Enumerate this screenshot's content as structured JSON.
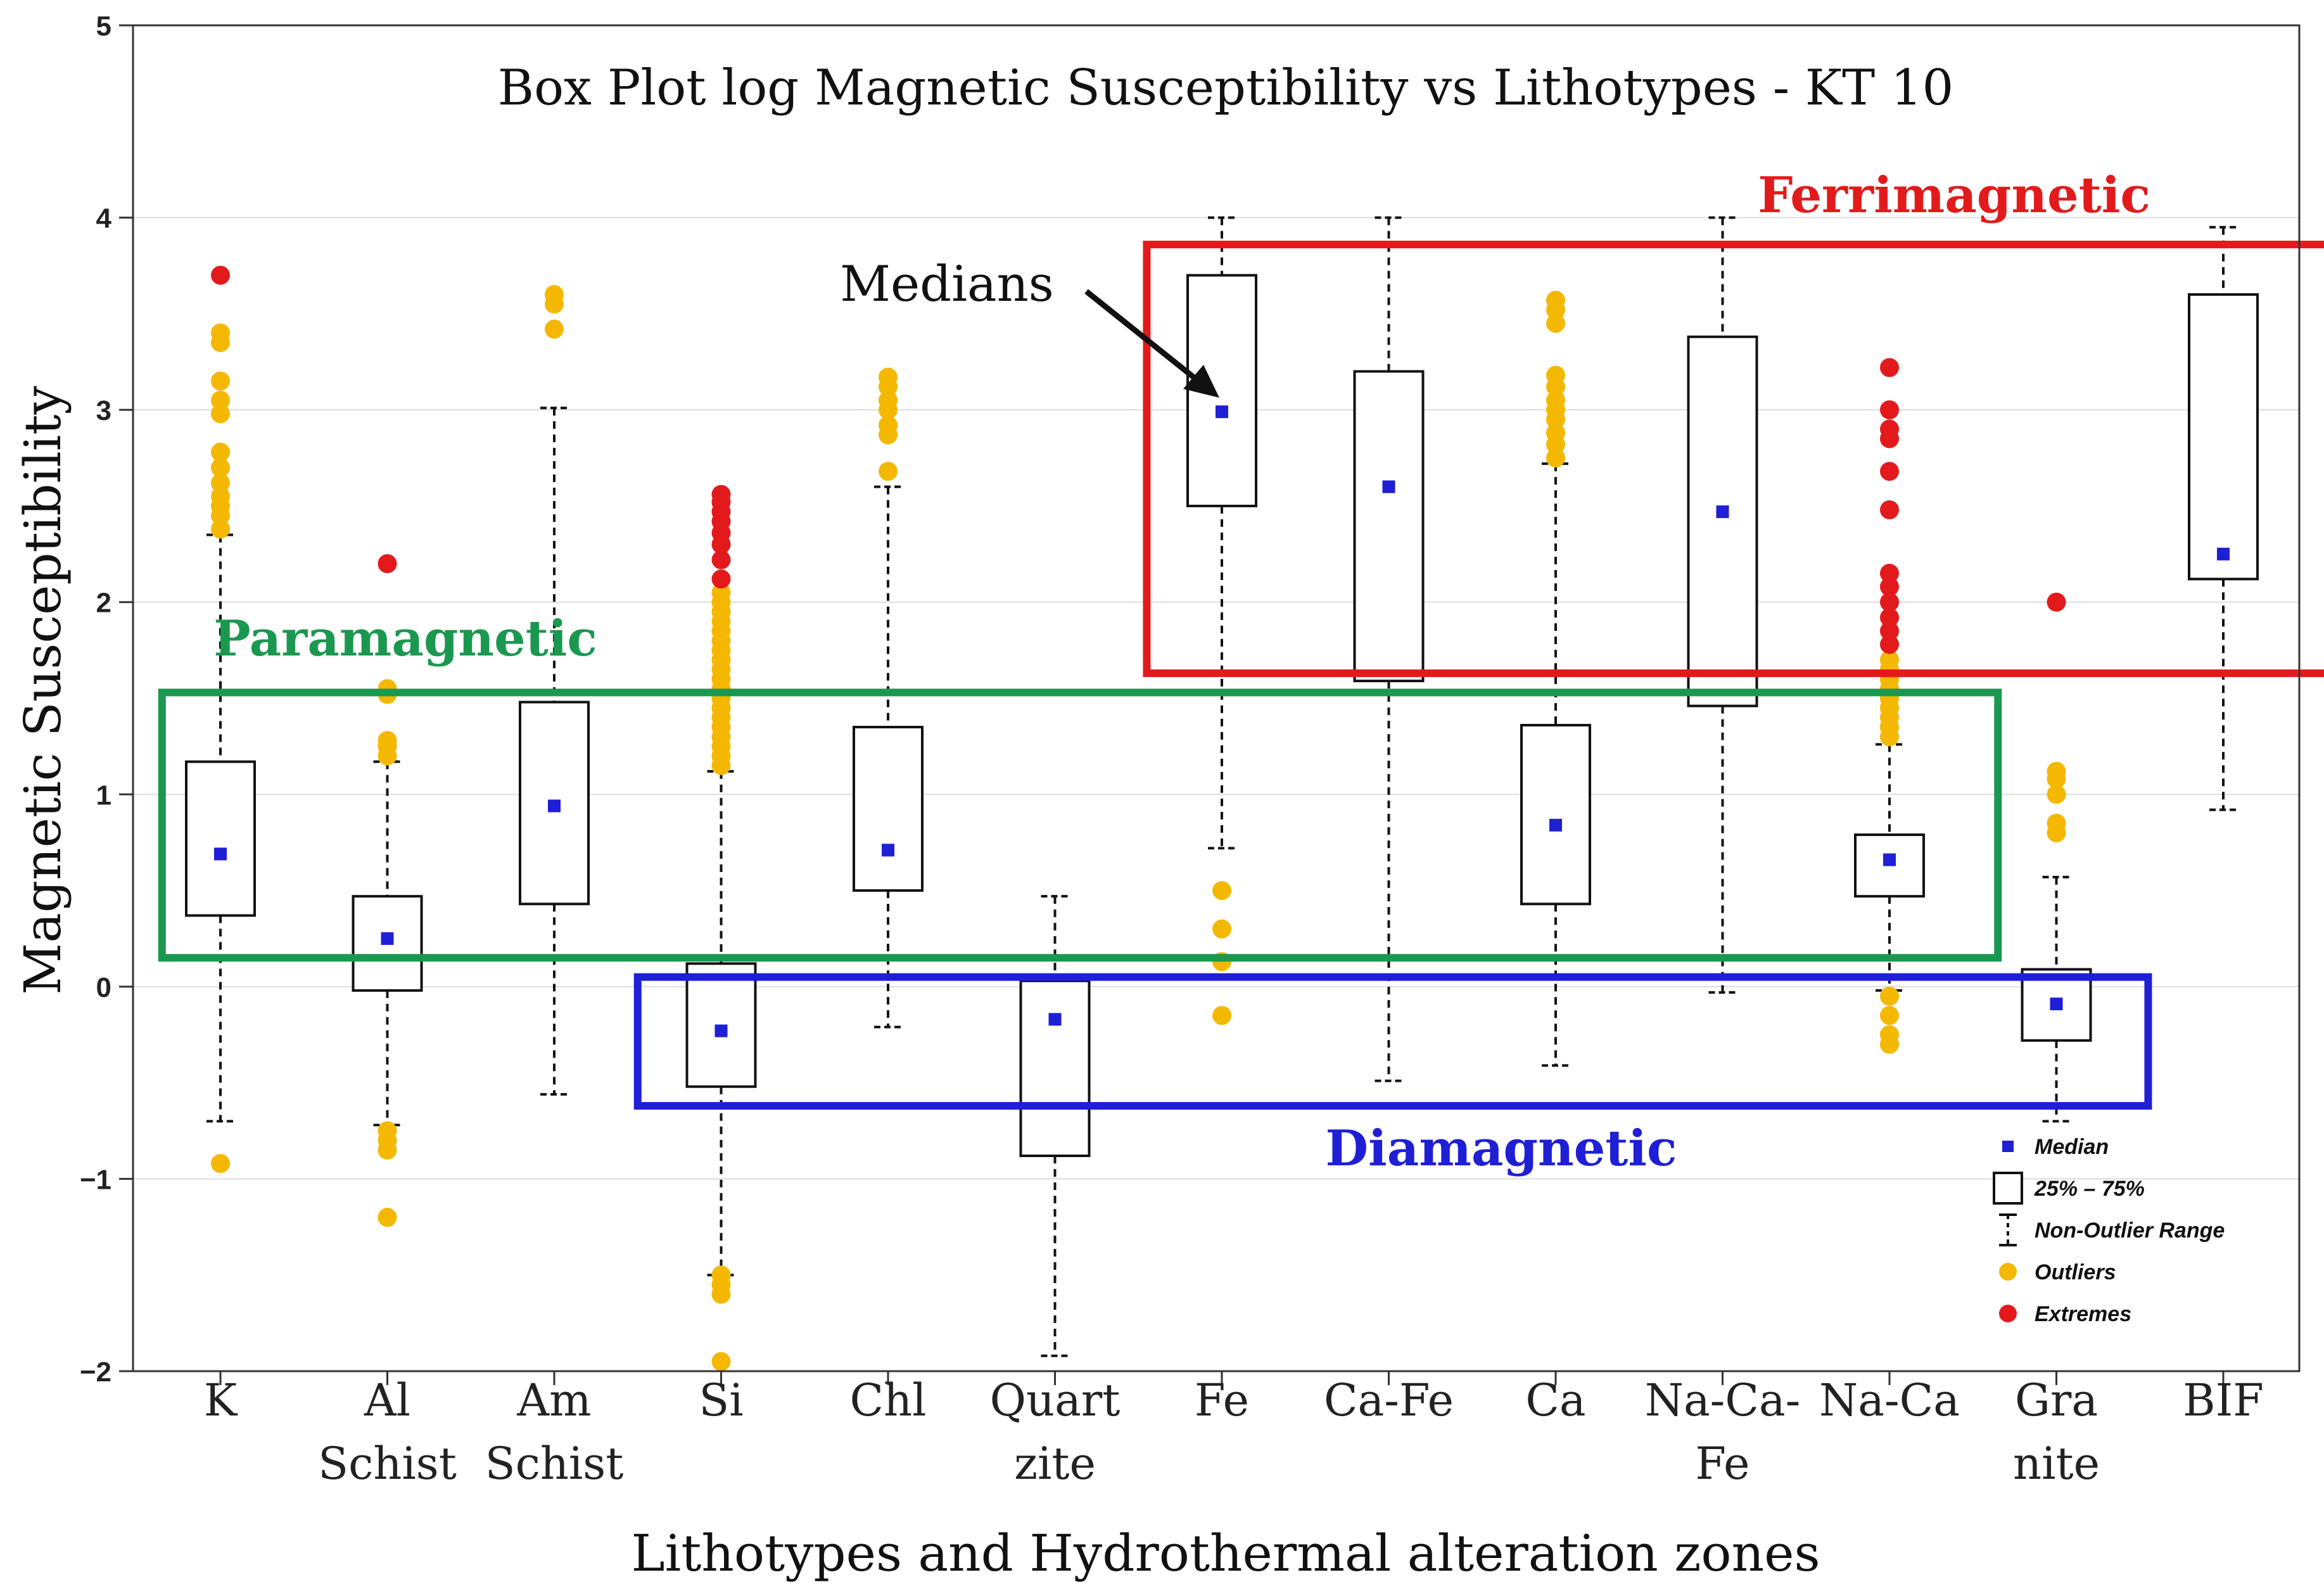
{
  "chart_data": {
    "type": "box",
    "title": "Box Plot log Magnetic Susceptibility  vs  Lithotypes - KT 10",
    "xlabel": "Lithotypes and Hydrothermal alteration zones",
    "ylabel": "Magnetic  Susceptibility",
    "ylim": [
      -2,
      5
    ],
    "yticks": [
      -2,
      -1,
      0,
      1,
      2,
      3,
      4,
      5
    ],
    "grid": "horizontal",
    "categories": [
      {
        "label": [
          "K"
        ],
        "whisker_low": -0.7,
        "q1": 0.37,
        "median": 0.69,
        "q3": 1.17,
        "whisker_high": 2.35,
        "outliers": [
          -0.92,
          2.38,
          2.45,
          2.5,
          2.55,
          2.62,
          2.7,
          2.78,
          2.98,
          3.05,
          3.15,
          3.35,
          3.4
        ],
        "extremes": [
          3.7
        ]
      },
      {
        "label": [
          "Al",
          "Schist"
        ],
        "whisker_low": -0.72,
        "q1": -0.02,
        "median": 0.25,
        "q3": 0.47,
        "whisker_high": 1.17,
        "outliers": [
          -1.2,
          -0.85,
          -0.8,
          -0.75,
          1.2,
          1.25,
          1.28,
          1.52,
          1.55
        ],
        "extremes": [
          2.2
        ]
      },
      {
        "label": [
          "Am",
          "Schist"
        ],
        "whisker_low": -0.56,
        "q1": 0.43,
        "median": 0.94,
        "q3": 1.48,
        "whisker_high": 3.01,
        "outliers": [
          3.42,
          3.55,
          3.6
        ],
        "extremes": []
      },
      {
        "label": [
          "Si"
        ],
        "whisker_low": -1.5,
        "q1": -0.52,
        "median": -0.23,
        "q3": 0.12,
        "whisker_high": 1.12,
        "outliers": [
          -1.95,
          -1.6,
          -1.55,
          -1.5,
          1.15,
          1.2,
          1.25,
          1.3,
          1.35,
          1.4,
          1.45,
          1.5,
          1.55,
          1.6,
          1.65,
          1.7,
          1.75,
          1.8,
          1.85,
          1.9,
          1.95,
          2.0,
          2.05
        ],
        "extremes": [
          2.12,
          2.22,
          2.3,
          2.36,
          2.42,
          2.47,
          2.52,
          2.56
        ]
      },
      {
        "label": [
          "Chl"
        ],
        "whisker_low": -0.21,
        "q1": 0.5,
        "median": 0.71,
        "q3": 1.35,
        "whisker_high": 2.6,
        "outliers": [
          2.68,
          2.87,
          2.92,
          3.0,
          3.05,
          3.12,
          3.17
        ],
        "extremes": []
      },
      {
        "label": [
          "Quart",
          "zite"
        ],
        "whisker_low": -1.92,
        "q1": -0.88,
        "median": -0.17,
        "q3": 0.03,
        "whisker_high": 0.47,
        "outliers": [],
        "extremes": []
      },
      {
        "label": [
          "Fe"
        ],
        "whisker_low": 0.72,
        "q1": 2.5,
        "median": 2.99,
        "q3": 3.7,
        "whisker_high": 4.0,
        "outliers": [
          -0.15,
          0.13,
          0.3,
          0.5
        ],
        "extremes": []
      },
      {
        "label": [
          "Ca-Fe"
        ],
        "whisker_low": -0.49,
        "q1": 1.59,
        "median": 2.6,
        "q3": 3.2,
        "whisker_high": 4.0,
        "outliers": [],
        "extremes": []
      },
      {
        "label": [
          "Ca"
        ],
        "whisker_low": -0.41,
        "q1": 0.43,
        "median": 0.84,
        "q3": 1.36,
        "whisker_high": 2.72,
        "outliers": [
          2.75,
          2.82,
          2.88,
          2.95,
          3.0,
          3.05,
          3.12,
          3.18,
          3.45,
          3.52,
          3.57
        ],
        "extremes": []
      },
      {
        "label": [
          "Na-Ca-",
          "Fe"
        ],
        "whisker_low": -0.03,
        "q1": 1.46,
        "median": 2.47,
        "q3": 3.38,
        "whisker_high": 4.0,
        "outliers": [],
        "extremes": []
      },
      {
        "label": [
          "Na-Ca"
        ],
        "whisker_low": -0.02,
        "q1": 0.47,
        "median": 0.66,
        "q3": 0.79,
        "whisker_high": 1.26,
        "outliers": [
          -0.3,
          -0.25,
          -0.15,
          -0.05,
          1.3,
          1.35,
          1.4,
          1.45,
          1.5,
          1.55,
          1.6,
          1.65,
          1.7
        ],
        "extremes": [
          1.78,
          1.85,
          1.92,
          2.0,
          2.08,
          2.15,
          2.48,
          2.68,
          2.85,
          2.9,
          3.0,
          3.22
        ]
      },
      {
        "label": [
          "Gra",
          "nite"
        ],
        "whisker_low": -0.7,
        "q1": -0.28,
        "median": -0.09,
        "q3": 0.09,
        "whisker_high": 0.57,
        "outliers": [
          0.8,
          0.85,
          1.0,
          1.08,
          1.12
        ],
        "extremes": [
          2.0
        ]
      },
      {
        "label": [
          "BIF"
        ],
        "whisker_low": 0.92,
        "q1": 2.12,
        "median": 2.25,
        "q3": 3.6,
        "whisker_high": 3.95,
        "outliers": [],
        "extremes": []
      }
    ],
    "annotations": [
      {
        "text": "Ferrimagnetic",
        "color": "#e31a1c"
      },
      {
        "text": "Paramagnetic",
        "color": "#1a9850"
      },
      {
        "text": "Diamagnetic",
        "color": "#1f1fd6"
      },
      {
        "text": "Medians",
        "color": "#111111"
      }
    ],
    "zones": [
      {
        "name": "Ferrimagnetic",
        "color": "#e31a1c",
        "x_from_cat": 5.55,
        "x_to_cat": 12.85,
        "y_from": 1.63,
        "y_to": 3.86
      },
      {
        "name": "Paramagnetic",
        "color": "#1a9850",
        "x_from_cat": -0.35,
        "x_to_cat": 10.65,
        "y_from": 0.15,
        "y_to": 1.53
      },
      {
        "name": "Diamagnetic",
        "color": "#1f1fd6",
        "x_from_cat": 2.5,
        "x_to_cat": 11.55,
        "y_from": -0.62,
        "y_to": 0.05
      }
    ],
    "legend": {
      "position": "bottom-right",
      "entries": [
        {
          "label": "Median",
          "symbol": "median",
          "color": "#1f1fd6"
        },
        {
          "label": "25% – 75%",
          "symbol": "box"
        },
        {
          "label": "Non-Outlier Range",
          "symbol": "whisker"
        },
        {
          "label": "Outliers",
          "symbol": "dot",
          "color": "#f5b800"
        },
        {
          "label": "Extremes",
          "symbol": "dot",
          "color": "#e31a1c"
        }
      ]
    },
    "colors": {
      "median": "#1f1fd6",
      "outlier": "#f5b800",
      "extreme": "#e31a1c",
      "box": "#111111",
      "grid": "#dddddd"
    }
  }
}
